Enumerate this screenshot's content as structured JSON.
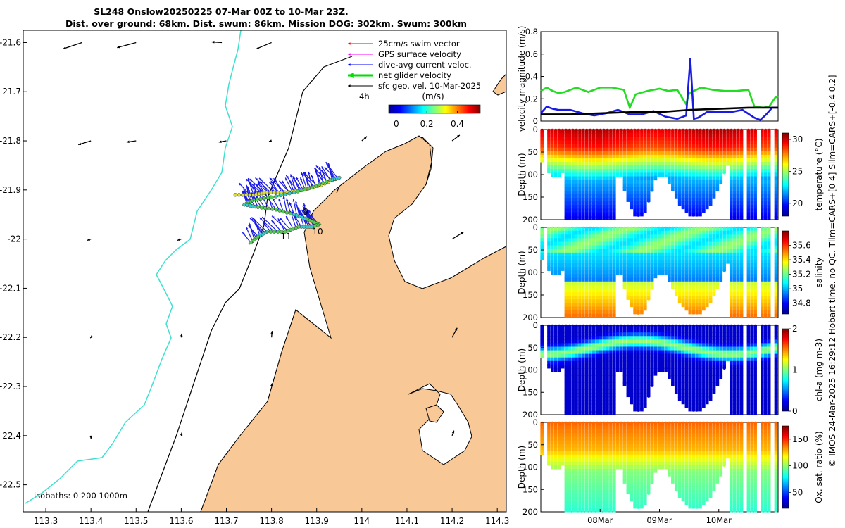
{
  "colors": {
    "land": "#f9c897",
    "isobath200": "#000000",
    "isobath1000": "#40e0d0",
    "track": "#33dd33",
    "current": "#1a1ae6",
    "wind": "#000000"
  },
  "chart_data": [
    {
      "type": "map",
      "title": "SL248 Onslow20250225 07-Mar 00Z to 10-Mar 23Z.",
      "subtitle": "Dist. over ground: 68km. Dist. swum: 86km. Mission DOG: 302km. Swum: 300km",
      "xlim": [
        113.25,
        114.32
      ],
      "ylim": [
        -22.555,
        -21.575
      ],
      "xticks": [
        113.3,
        113.4,
        113.5,
        113.6,
        113.7,
        113.8,
        113.9,
        114,
        114.1,
        114.2,
        114.3
      ],
      "xtick_labels": [
        "113.3",
        "113.4",
        "113.5",
        "113.6",
        "113.7",
        "113.8",
        "113.9",
        "114",
        "114.1",
        "114.2",
        "114.3"
      ],
      "yticks": [
        -21.6,
        -21.7,
        -21.8,
        -21.9,
        -22,
        -22.1,
        -22.2,
        -22.3,
        -22.4,
        -22.5
      ],
      "ytick_labels": [
        "-21.6",
        "-21.7",
        "-21.8",
        "-21.9",
        "-22",
        "-22.1",
        "-22.2",
        "-22.3",
        "-22.4",
        "-22.5"
      ],
      "legend": [
        {
          "label": "25cm/s swim vector",
          "color": "#ff0000"
        },
        {
          "label": "GPS surface velocity",
          "color": "#ff00ff"
        },
        {
          "label": "dive-avg current veloc.",
          "color": "#0000ff"
        },
        {
          "label": "net glider velocity",
          "color": "#00dd00"
        },
        {
          "label": "sfc geo. vel. 10-Mar-2025",
          "color": "#000000"
        }
      ],
      "legend_note": "4h",
      "colorbar": {
        "label": "(m/s)",
        "ticks": [
          0,
          0.2,
          0.4
        ],
        "tick_labels": [
          "0",
          "0.2",
          "0.4"
        ],
        "range": [
          -0.05,
          0.55
        ]
      },
      "isobaths_label": "isobaths: 0   200  1000m",
      "waypoint_labels": [
        {
          "text": "7",
          "lon": 113.94,
          "lat": -21.9
        },
        {
          "text": "9",
          "lon": 113.87,
          "lat": -21.945
        },
        {
          "text": "10",
          "lon": 113.89,
          "lat": -21.985
        },
        {
          "text": "11",
          "lon": 113.82,
          "lat": -21.995
        }
      ],
      "glider_track": [
        [
          113.72,
          -21.91
        ],
        [
          113.76,
          -21.91
        ],
        [
          113.79,
          -21.905
        ],
        [
          113.83,
          -21.905
        ],
        [
          113.87,
          -21.9
        ],
        [
          113.91,
          -21.89
        ],
        [
          113.95,
          -21.875
        ],
        [
          113.93,
          -21.88
        ],
        [
          113.89,
          -21.895
        ],
        [
          113.85,
          -21.905
        ],
        [
          113.8,
          -21.915
        ],
        [
          113.76,
          -21.92
        ],
        [
          113.74,
          -21.93
        ],
        [
          113.77,
          -21.935
        ],
        [
          113.81,
          -21.94
        ],
        [
          113.85,
          -21.95
        ],
        [
          113.88,
          -21.96
        ],
        [
          113.905,
          -21.97
        ],
        [
          113.89,
          -21.975
        ],
        [
          113.86,
          -21.975
        ],
        [
          113.83,
          -21.985
        ],
        [
          113.79,
          -21.985
        ],
        [
          113.77,
          -21.995
        ],
        [
          113.75,
          -22.01
        ]
      ],
      "sfc_vectors": [
        {
          "lon": 113.38,
          "lat": -21.6,
          "u": -0.3,
          "v": -0.1
        },
        {
          "lon": 113.5,
          "lat": -21.6,
          "u": -0.3,
          "v": -0.08
        },
        {
          "lon": 113.69,
          "lat": -21.6,
          "u": -0.16,
          "v": 0.01
        },
        {
          "lon": 113.8,
          "lat": -21.6,
          "u": -0.24,
          "v": -0.1
        },
        {
          "lon": 113.4,
          "lat": -21.8,
          "u": -0.2,
          "v": -0.06
        },
        {
          "lon": 113.5,
          "lat": -21.8,
          "u": -0.15,
          "v": -0.02
        },
        {
          "lon": 113.7,
          "lat": -21.8,
          "u": -0.12,
          "v": -0.02
        },
        {
          "lon": 113.8,
          "lat": -21.8,
          "u": -0.04,
          "v": -0.01
        },
        {
          "lon": 114,
          "lat": -21.8,
          "u": 0.08,
          "v": 0.07
        },
        {
          "lon": 114.2,
          "lat": -21.8,
          "u": 0.12,
          "v": 0.09
        },
        {
          "lon": 113.4,
          "lat": -22,
          "u": -0.06,
          "v": -0.02
        },
        {
          "lon": 113.6,
          "lat": -22,
          "u": -0.06,
          "v": -0.02
        },
        {
          "lon": 114.2,
          "lat": -22,
          "u": 0.18,
          "v": 0.11
        },
        {
          "lon": 113.4,
          "lat": -22.2,
          "u": -0.01,
          "v": -0.01
        },
        {
          "lon": 113.6,
          "lat": -22.2,
          "u": 0.01,
          "v": 0.06
        },
        {
          "lon": 113.8,
          "lat": -22.2,
          "u": 0.01,
          "v": 0.1
        },
        {
          "lon": 114.2,
          "lat": -22.2,
          "u": 0.08,
          "v": 0.15
        },
        {
          "lon": 113.8,
          "lat": -22.3,
          "u": 0.01,
          "v": 0.05
        },
        {
          "lon": 113.4,
          "lat": -22.4,
          "u": 0.0,
          "v": -0.05
        },
        {
          "lon": 113.6,
          "lat": -22.4,
          "u": 0.01,
          "v": 0.05
        },
        {
          "lon": 114.2,
          "lat": -22.4,
          "u": 0.03,
          "v": 0.08
        }
      ]
    },
    {
      "type": "line",
      "ylabel": "velocity magnitude (m/s)",
      "ylim": [
        0,
        0.8
      ],
      "yticks": [
        0,
        0.2,
        0.4,
        0.6,
        0.8
      ],
      "ytick_labels": [
        "0",
        "0.2",
        "0.4",
        "0.6",
        "0.8"
      ],
      "x_day_range": [
        7,
        11
      ],
      "series": [
        {
          "name": "net glider velocity",
          "color": "#22dd22",
          "x": [
            7.0,
            7.1,
            7.2,
            7.3,
            7.4,
            7.6,
            7.8,
            8.0,
            8.2,
            8.4,
            8.5,
            8.6,
            8.8,
            9.0,
            9.15,
            9.3,
            9.45,
            9.5,
            9.7,
            9.9,
            10.1,
            10.3,
            10.5,
            10.6,
            10.75,
            10.85,
            10.95,
            11.0
          ],
          "y": [
            0.27,
            0.3,
            0.27,
            0.25,
            0.26,
            0.3,
            0.26,
            0.3,
            0.3,
            0.28,
            0.12,
            0.24,
            0.27,
            0.29,
            0.27,
            0.28,
            0.15,
            0.25,
            0.3,
            0.28,
            0.27,
            0.27,
            0.28,
            0.13,
            0.12,
            0.13,
            0.21,
            0.22
          ]
        },
        {
          "name": "dive-avg current",
          "color": "#1a1ae6",
          "x": [
            7.0,
            7.1,
            7.2,
            7.3,
            7.5,
            7.7,
            7.9,
            8.1,
            8.3,
            8.5,
            8.7,
            8.9,
            9.1,
            9.3,
            9.45,
            9.52,
            9.58,
            9.65,
            9.8,
            10.0,
            10.2,
            10.4,
            10.6,
            10.7,
            10.8,
            10.9,
            11.0
          ],
          "y": [
            0.07,
            0.13,
            0.11,
            0.1,
            0.1,
            0.07,
            0.05,
            0.07,
            0.1,
            0.06,
            0.06,
            0.09,
            0.04,
            0.02,
            0.05,
            0.56,
            0.02,
            0.03,
            0.08,
            0.08,
            0.08,
            0.1,
            0.03,
            0.01,
            0.06,
            0.12,
            0.12
          ]
        },
        {
          "name": "sfc geo. vel.",
          "color": "#000000",
          "x": [
            7.0,
            7.5,
            8.0,
            8.5,
            9.0,
            9.5,
            10.0,
            10.5,
            11.0
          ],
          "y": [
            0.06,
            0.06,
            0.07,
            0.08,
            0.08,
            0.1,
            0.11,
            0.12,
            0.12
          ]
        }
      ]
    },
    {
      "type": "heatmap",
      "ylabel": "Depth (m)",
      "colorbar_label": "temperature (°C)",
      "clim": [
        18,
        31
      ],
      "cbar_ticks": [
        20,
        25,
        30
      ],
      "cbar_tick_labels": [
        "20",
        "25",
        "30"
      ],
      "yticks": [
        0,
        50,
        100,
        150,
        200
      ],
      "ytick_labels": [
        "0",
        "50",
        "100",
        "150",
        "200"
      ],
      "profile": "temperature"
    },
    {
      "type": "heatmap",
      "ylabel": "Depth (m)",
      "colorbar_label": "salinity",
      "clim": [
        34.65,
        35.8
      ],
      "cbar_ticks": [
        34.8,
        35,
        35.2,
        35.4,
        35.6
      ],
      "cbar_tick_labels": [
        "34.8",
        "35",
        "35.2",
        "35.4",
        "35.6"
      ],
      "yticks": [
        0,
        50,
        100,
        150,
        200
      ],
      "ytick_labels": [
        "0",
        "50",
        "100",
        "150",
        "200"
      ],
      "profile": "salinity"
    },
    {
      "type": "heatmap",
      "ylabel": "Depth (m)",
      "colorbar_label": "chl-a (mg m-3)",
      "clim": [
        0,
        2
      ],
      "cbar_ticks": [
        0,
        1,
        2
      ],
      "cbar_tick_labels": [
        "0",
        "1",
        "2"
      ],
      "yticks": [
        0,
        50,
        100,
        150,
        200
      ],
      "ytick_labels": [
        "0",
        "50",
        "100",
        "150",
        "200"
      ],
      "profile": "chla"
    },
    {
      "type": "heatmap",
      "ylabel": "Depth (m)",
      "colorbar_label": "Ox. sat. ratio (%)",
      "clim": [
        20,
        175
      ],
      "cbar_ticks": [
        50,
        100,
        150
      ],
      "cbar_tick_labels": [
        "50",
        "100",
        "150"
      ],
      "yticks": [
        0,
        50,
        100,
        150,
        200
      ],
      "ytick_labels": [
        "0",
        "50",
        "100",
        "150",
        "200"
      ],
      "profile": "oxygen",
      "xtick_days": [
        8,
        9,
        10
      ],
      "xtick_labels": [
        "08Mar",
        "09Mar",
        "10Mar"
      ]
    }
  ],
  "footer_note": "© IMOS 24-Mar-2025 16:29:12 Hobart time. no QC. Tlim=CARS+[0 4] Slim=CARS+[-0.4 0.2]"
}
